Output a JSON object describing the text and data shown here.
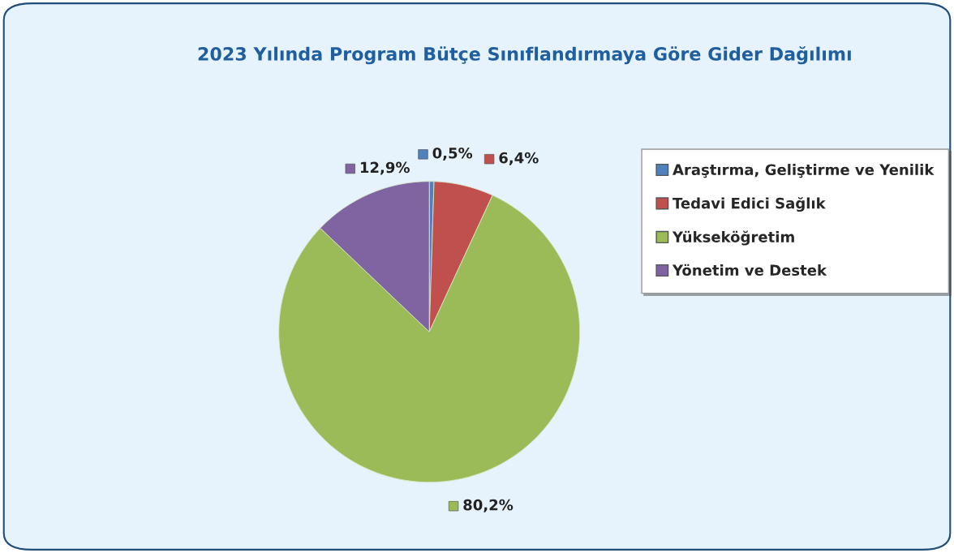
{
  "chart_data": {
    "type": "pie",
    "title": "2023 Yılında Program Bütçe Sınıflandırmaya Göre Gider Dağılımı",
    "categories": [
      "Araştırma, Geliştirme ve Yenilik",
      "Tedavi Edici Sağlık",
      "Yükseköğretim",
      "Yönetim ve Destek"
    ],
    "values": [
      0.5,
      6.4,
      80.2,
      12.9
    ],
    "value_labels": [
      "0,5%",
      "6,4%",
      "80,2%",
      "12,9%"
    ],
    "colors": [
      "#4f81bd",
      "#c0504d",
      "#9bbb59",
      "#8064a2"
    ],
    "legend": "right"
  }
}
